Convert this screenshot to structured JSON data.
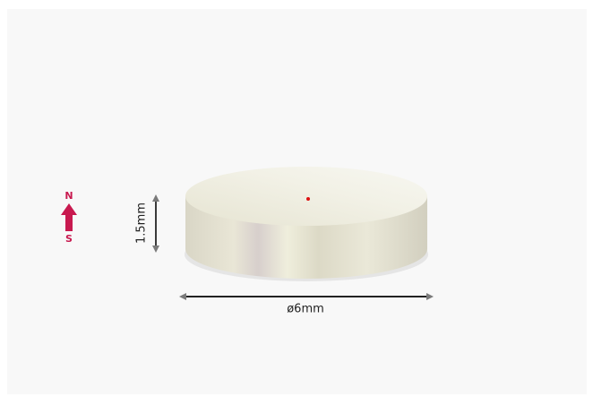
{
  "labels": {
    "north": "N",
    "south": "S",
    "height": "1.5mm",
    "diameter": "ø6mm"
  }
}
